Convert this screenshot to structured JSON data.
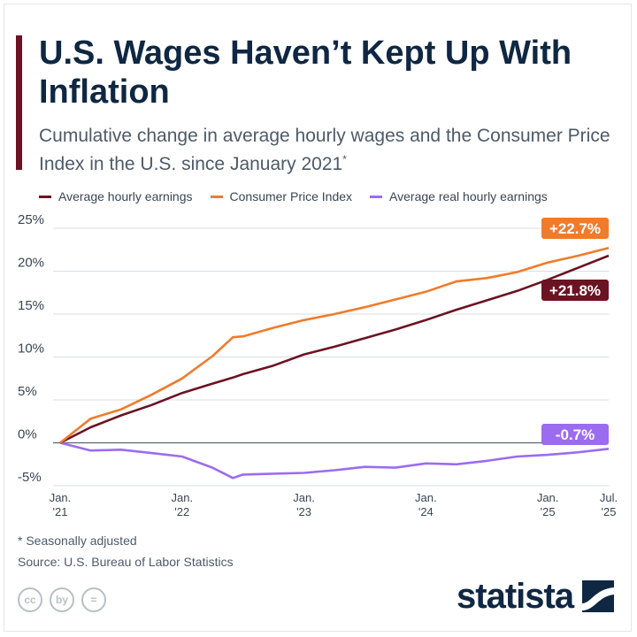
{
  "header": {
    "title": "U.S. Wages Haven’t Kept Up With Inflation",
    "subtitle": "Cumulative change in average hourly wages and the Consumer Price Index in the U.S. since January 2021",
    "subtitle_marker": "*"
  },
  "footer": {
    "note": "* Seasonally adjusted",
    "source": "Source: U.S. Bureau of Labor Statistics",
    "brand": "statista",
    "license_icons": [
      "cc",
      "by",
      "="
    ]
  },
  "colors": {
    "wages": "#6b1322",
    "cpi": "#f07b2b",
    "real": "#9b6cf0",
    "grid": "#d9dde2",
    "zero": "#5a6573"
  },
  "chart_data": {
    "type": "line",
    "ylim": [
      -5,
      25
    ],
    "yticks": [
      -5,
      0,
      5,
      10,
      15,
      20,
      25
    ],
    "ytick_labels": [
      "-5%",
      "0%",
      "5%",
      "10%",
      "15%",
      "20%",
      "25%"
    ],
    "xlim": [
      "2021-01",
      "2025-07"
    ],
    "xticks": [
      {
        "value": "2021-01",
        "line1": "Jan.",
        "line2": "'21"
      },
      {
        "value": "2022-01",
        "line1": "Jan.",
        "line2": "'22"
      },
      {
        "value": "2023-01",
        "line1": "Jan.",
        "line2": "'23"
      },
      {
        "value": "2024-01",
        "line1": "Jan.",
        "line2": "'24"
      },
      {
        "value": "2025-01",
        "line1": "Jan.",
        "line2": "'25"
      },
      {
        "value": "2025-07",
        "line1": "Jul.",
        "line2": "'25"
      }
    ],
    "x": [
      "2021-01",
      "2021-04",
      "2021-07",
      "2021-10",
      "2022-01",
      "2022-04",
      "2022-06",
      "2022-07",
      "2022-10",
      "2023-01",
      "2023-04",
      "2023-07",
      "2023-10",
      "2024-01",
      "2024-04",
      "2024-07",
      "2024-10",
      "2025-01",
      "2025-04",
      "2025-07"
    ],
    "series": [
      {
        "name": "Average hourly earnings",
        "key": "wages",
        "values": [
          0,
          1.8,
          3.2,
          4.4,
          5.8,
          6.9,
          7.6,
          8.0,
          9.0,
          10.3,
          11.2,
          12.2,
          13.2,
          14.3,
          15.5,
          16.6,
          17.7,
          19.0,
          20.4,
          21.8
        ],
        "end_label": "+21.8%"
      },
      {
        "name": "Consumer Price Index",
        "key": "cpi",
        "values": [
          0,
          2.8,
          3.9,
          5.6,
          7.5,
          10.1,
          12.3,
          12.4,
          13.4,
          14.3,
          15.0,
          15.8,
          16.7,
          17.6,
          18.8,
          19.2,
          19.9,
          21.0,
          21.8,
          22.7
        ],
        "end_label": "+22.7%"
      },
      {
        "name": "Average real hourly earnings",
        "key": "real",
        "values": [
          0,
          -0.9,
          -0.8,
          -1.2,
          -1.6,
          -2.9,
          -4.1,
          -3.7,
          -3.6,
          -3.5,
          -3.2,
          -2.8,
          -2.9,
          -2.4,
          -2.5,
          -2.1,
          -1.6,
          -1.4,
          -1.1,
          -0.7
        ],
        "end_label": "-0.7%"
      }
    ],
    "grid": true,
    "legend_position": "top"
  }
}
